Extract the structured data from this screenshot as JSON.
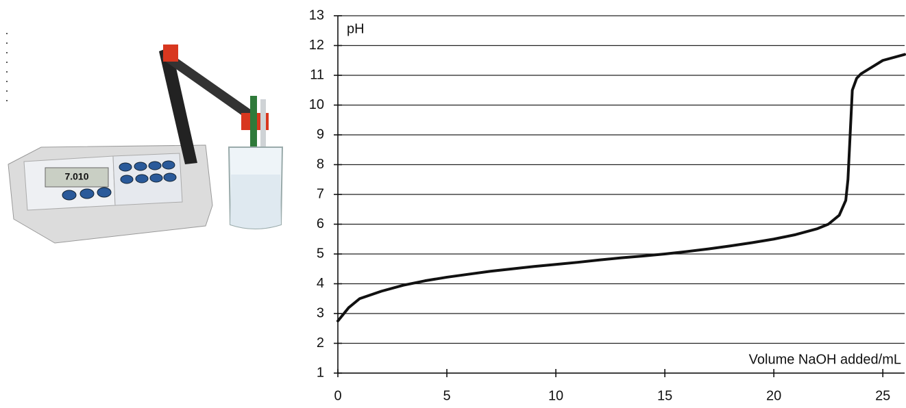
{
  "chart_data": {
    "type": "line",
    "y_label": "pH",
    "x_label": "Volume NaOH added/mL",
    "x": [
      0,
      0.5,
      1,
      2,
      3,
      4,
      5,
      6,
      7,
      8,
      9,
      10,
      11,
      12,
      13,
      14,
      15,
      16,
      17,
      18,
      19,
      20,
      21,
      22,
      22.5,
      23,
      23.3,
      23.4,
      23.5,
      23.6,
      23.8,
      24,
      25,
      26
    ],
    "values": [
      2.75,
      3.2,
      3.5,
      3.75,
      3.95,
      4.1,
      4.22,
      4.32,
      4.42,
      4.5,
      4.58,
      4.65,
      4.72,
      4.8,
      4.87,
      4.93,
      5.0,
      5.08,
      5.17,
      5.27,
      5.38,
      5.5,
      5.65,
      5.85,
      6.0,
      6.3,
      6.8,
      7.5,
      9.0,
      10.5,
      10.9,
      11.05,
      11.5,
      11.7
    ],
    "color": "#111111",
    "xlim": [
      0,
      26
    ],
    "ylim": [
      1,
      13
    ],
    "xticks": [
      0,
      5,
      10,
      15,
      20,
      25
    ],
    "yticks": [
      1,
      2,
      3,
      4,
      5,
      6,
      7,
      8,
      9,
      10,
      11,
      12,
      13
    ],
    "grid": true
  },
  "photo": {
    "display_reading": "7.010"
  }
}
